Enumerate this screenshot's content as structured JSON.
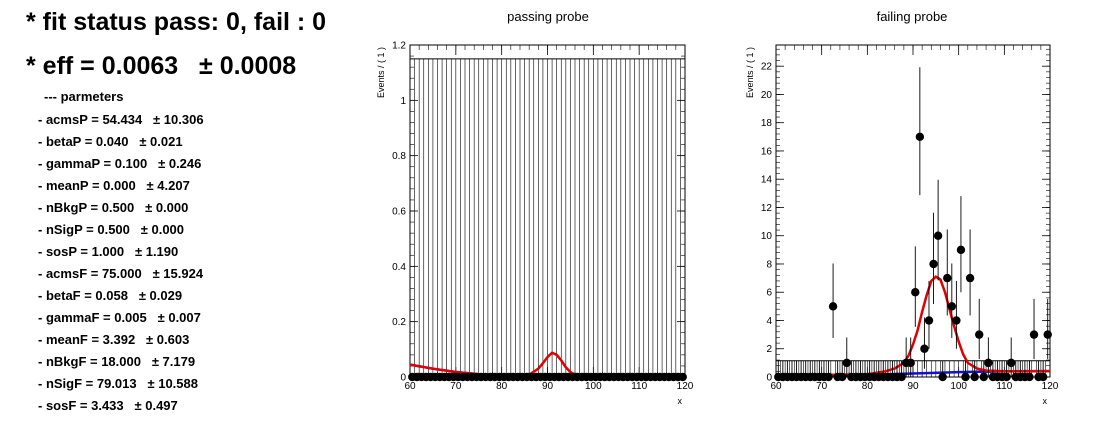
{
  "summary": {
    "status": "* fit status pass: 0, fail : 0",
    "eff": "* eff = 0.0063",
    "eff_err": "± 0.0008",
    "params_header": "--- parmeters"
  },
  "parameters": [
    {
      "name": "- acmsP = 54.434",
      "err": "± 10.306"
    },
    {
      "name": "- betaP = 0.040",
      "err": "± 0.021"
    },
    {
      "name": "- gammaP = 0.100",
      "err": "± 0.246"
    },
    {
      "name": "- meanP = 0.000",
      "err": "± 4.207"
    },
    {
      "name": "- nBkgP = 0.500",
      "err": "± 0.000"
    },
    {
      "name": "- nSigP = 0.500",
      "err": "± 0.000"
    },
    {
      "name": "- sosP = 1.000",
      "err": "± 1.190"
    },
    {
      "name": "- acmsF = 75.000",
      "err": "± 15.924"
    },
    {
      "name": "- betaF = 0.058",
      "err": "± 0.029"
    },
    {
      "name": "- gammaF = 0.005",
      "err": "± 0.007"
    },
    {
      "name": "- meanF = 3.392",
      "err": "± 0.603"
    },
    {
      "name": "- nBkgF = 18.000",
      "err": "± 7.179"
    },
    {
      "name": "- nSigF = 79.013",
      "err": "± 10.588"
    },
    {
      "name": "- sosF = 3.433",
      "err": "± 0.497"
    }
  ],
  "colors": {
    "signal_plus_bkg": "#e00000",
    "background": "#1010d0",
    "points": "#000000"
  },
  "chart_data": [
    {
      "type": "scatter",
      "title": "passing probe",
      "xlabel": "x",
      "ylabel": "Events / ( 1 )",
      "xlim": [
        60,
        120
      ],
      "ylim": [
        0,
        1.2
      ],
      "xticks": [
        60,
        70,
        80,
        90,
        100,
        110,
        120
      ],
      "yticks": [
        0,
        0.2,
        0.4,
        0.6,
        0.8,
        1,
        1.2
      ],
      "ytick_labels": [
        "0",
        "0.2",
        "0.4",
        "0.6",
        "0.8",
        "1",
        "1.2"
      ],
      "error_band_top": 1.15,
      "points_x": [
        60.5,
        61.5,
        62.5,
        63.5,
        64.5,
        65.5,
        66.5,
        67.5,
        68.5,
        69.5,
        70.5,
        71.5,
        72.5,
        73.5,
        74.5,
        75.5,
        76.5,
        77.5,
        78.5,
        79.5,
        80.5,
        81.5,
        82.5,
        83.5,
        84.5,
        85.5,
        86.5,
        87.5,
        88.5,
        89.5,
        90.5,
        91.5,
        92.5,
        93.5,
        94.5,
        95.5,
        96.5,
        97.5,
        98.5,
        99.5,
        100.5,
        101.5,
        102.5,
        103.5,
        104.5,
        105.5,
        106.5,
        107.5,
        108.5,
        109.5,
        110.5,
        111.5,
        112.5,
        113.5,
        114.5,
        115.5,
        116.5,
        117.5,
        118.5,
        119.5
      ],
      "points_y": [
        0,
        0,
        0,
        0,
        0,
        0,
        0,
        0,
        0,
        0,
        0,
        0,
        0,
        0,
        0,
        0,
        0,
        0,
        0,
        0,
        0,
        0,
        0,
        0,
        0,
        0,
        0,
        0,
        0,
        0,
        0,
        0,
        0,
        0,
        0,
        0,
        0,
        0,
        0,
        0,
        0,
        0,
        0,
        0,
        0,
        0,
        0,
        0,
        0,
        0,
        0,
        0,
        0,
        0,
        0,
        0,
        0,
        0,
        0,
        0
      ],
      "background_curve": {
        "x": [
          60,
          65,
          70,
          75,
          80,
          85,
          90,
          95,
          100,
          110,
          120
        ],
        "y": [
          0.045,
          0.03,
          0.018,
          0.01,
          0.005,
          0.003,
          0.001,
          0.0005,
          0.0002,
          0.0001,
          0.0001
        ]
      },
      "total_curve": {
        "x": [
          60,
          65,
          70,
          75,
          80,
          84,
          86,
          88,
          89,
          90,
          91,
          92,
          93,
          94,
          95,
          96,
          98,
          100,
          110,
          120
        ],
        "y": [
          0.045,
          0.03,
          0.018,
          0.01,
          0.005,
          0.004,
          0.008,
          0.03,
          0.05,
          0.072,
          0.088,
          0.08,
          0.06,
          0.035,
          0.018,
          0.008,
          0.002,
          0.0005,
          0.0001,
          0.0001
        ]
      }
    },
    {
      "type": "scatter",
      "title": "failing probe",
      "xlabel": "x",
      "ylabel": "Events / ( 1 )",
      "xlim": [
        60,
        120
      ],
      "ylim": [
        0,
        23.5
      ],
      "xticks": [
        60,
        70,
        80,
        90,
        100,
        110,
        120
      ],
      "yticks": [
        0,
        2,
        4,
        6,
        8,
        10,
        12,
        14,
        16,
        18,
        20,
        22
      ],
      "ytick_labels": [
        "0",
        "2",
        "4",
        "6",
        "8",
        "10",
        "12",
        "14",
        "16",
        "18",
        "20",
        "22"
      ],
      "error_band_top": 1.15,
      "points_x": [
        60.5,
        61.5,
        62.5,
        63.5,
        64.5,
        65.5,
        66.5,
        67.5,
        68.5,
        69.5,
        70.5,
        71.5,
        72.5,
        73.5,
        74.5,
        75.5,
        76.5,
        77.5,
        78.5,
        79.5,
        80.5,
        81.5,
        82.5,
        83.5,
        84.5,
        85.5,
        86.5,
        87.5,
        88.5,
        89.5,
        90.5,
        91.5,
        92.5,
        93.5,
        94.5,
        95.5,
        96.5,
        97.5,
        98.5,
        99.5,
        100.5,
        101.5,
        102.5,
        103.5,
        104.5,
        105.5,
        106.5,
        107.5,
        108.5,
        109.5,
        110.5,
        111.5,
        112.5,
        113.5,
        114.5,
        115.5,
        116.5,
        117.5,
        118.5,
        119.5
      ],
      "points_y": [
        0,
        0,
        0,
        0,
        0,
        0,
        0,
        0,
        0,
        0,
        0,
        0,
        5,
        0,
        0,
        1,
        0,
        0,
        0,
        0,
        0,
        0,
        0,
        0,
        0,
        0,
        0,
        0,
        1,
        1,
        6,
        17,
        2,
        4,
        8,
        10,
        0,
        7,
        5,
        4,
        9,
        0,
        7,
        0,
        3,
        0,
        1,
        0,
        0,
        0,
        0,
        1,
        0,
        0,
        0,
        0,
        3,
        0,
        0,
        3
      ],
      "background_curve": {
        "x": [
          60,
          80,
          90,
          100,
          110,
          120
        ],
        "y": [
          0.1,
          0.15,
          0.25,
          0.35,
          0.4,
          0.42
        ]
      },
      "total_curve": {
        "x": [
          60,
          80,
          84,
          86,
          88,
          89,
          90,
          91,
          92,
          93,
          94,
          95,
          96,
          97,
          98,
          99,
          100,
          101,
          102,
          104,
          106,
          110,
          120
        ],
        "y": [
          0.1,
          0.2,
          0.4,
          0.6,
          1.0,
          1.5,
          2.3,
          3.3,
          4.6,
          5.8,
          6.8,
          7.1,
          6.9,
          6.0,
          4.8,
          3.6,
          2.5,
          1.6,
          1.0,
          0.6,
          0.45,
          0.4,
          0.42
        ]
      }
    }
  ]
}
